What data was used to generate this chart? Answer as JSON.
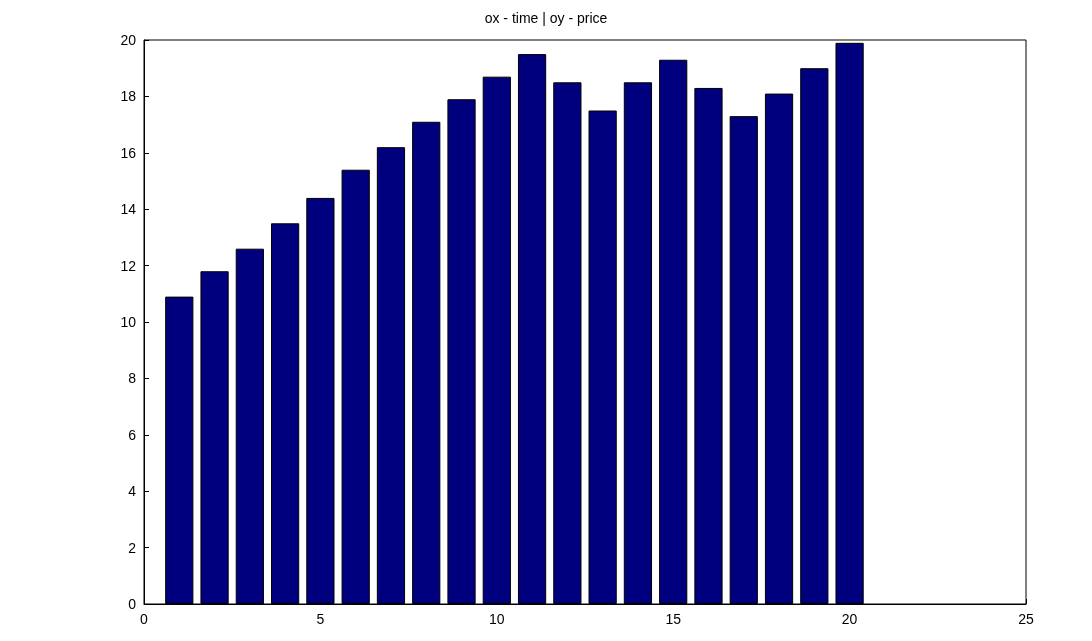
{
  "chart_data": {
    "type": "bar",
    "title": "ox - time | oy - price",
    "x": [
      1,
      2,
      3,
      4,
      5,
      6,
      7,
      8,
      9,
      10,
      11,
      12,
      13,
      14,
      15,
      16,
      17,
      18,
      19,
      20
    ],
    "values": [
      10.9,
      11.8,
      12.6,
      13.5,
      14.4,
      15.4,
      16.2,
      17.1,
      17.9,
      18.7,
      19.5,
      18.5,
      17.5,
      18.5,
      19.3,
      18.3,
      17.3,
      18.1,
      19.0,
      19.9
    ],
    "color": "#00007f",
    "xlim": [
      0,
      25
    ],
    "xticks": [
      0,
      5,
      10,
      15,
      20,
      25
    ],
    "ylim": [
      0,
      20
    ],
    "yticks": [
      0,
      2,
      4,
      6,
      8,
      10,
      12,
      14,
      16,
      18,
      20
    ],
    "grid": false
  }
}
